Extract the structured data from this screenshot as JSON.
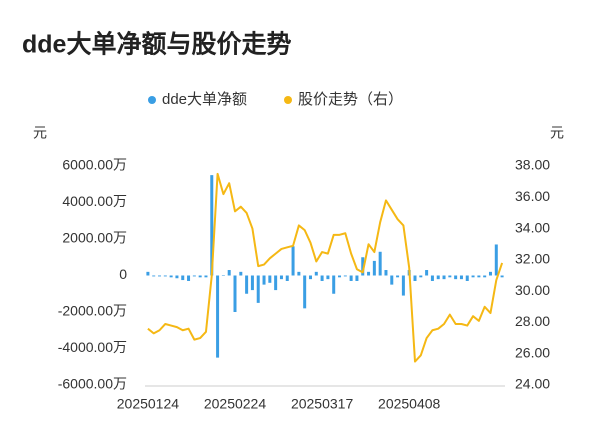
{
  "chart_data": {
    "type": "bar",
    "title": "dde大单净额与股价走势",
    "ylabel": "元",
    "y2label": "元",
    "categories": [
      "20250124",
      null,
      null,
      null,
      null,
      null,
      null,
      null,
      null,
      null,
      null,
      null,
      null,
      null,
      null,
      "20250224",
      null,
      null,
      null,
      null,
      null,
      null,
      null,
      null,
      null,
      null,
      null,
      null,
      null,
      null,
      "20250317",
      null,
      null,
      null,
      null,
      null,
      null,
      null,
      null,
      null,
      null,
      null,
      null,
      null,
      null,
      "20250408",
      null,
      null,
      null,
      null,
      null,
      null,
      null,
      null,
      null,
      null,
      null,
      null,
      null,
      null,
      null,
      null
    ],
    "series": [
      {
        "name": "dde大单净额",
        "type": "bar",
        "color": "#3a9ee4",
        "values": [
          200,
          -50,
          -50,
          -50,
          -100,
          -150,
          -250,
          -300,
          -50,
          -100,
          -100,
          5500,
          -4500,
          0,
          300,
          -2000,
          200,
          -1000,
          -800,
          -1500,
          -500,
          -400,
          -800,
          -200,
          -300,
          1600,
          200,
          -1800,
          -200,
          200,
          -300,
          -200,
          -1000,
          -100,
          -50,
          -300,
          -300,
          1000,
          200,
          800,
          1300,
          300,
          -500,
          -100,
          -1100,
          300,
          -300,
          -100,
          300,
          -300,
          -200,
          -200,
          -100,
          -200,
          -200,
          -300,
          -100,
          -100,
          -100,
          200,
          1700,
          -100
        ]
      },
      {
        "name": "股价走势（右）",
        "type": "line",
        "axis": "y2",
        "color": "#f5b814",
        "values": [
          27.6,
          27.3,
          27.5,
          27.9,
          27.8,
          27.7,
          27.5,
          27.6,
          26.9,
          27.0,
          27.4,
          31.0,
          37.5,
          36.2,
          36.9,
          35.1,
          35.4,
          35.0,
          34.0,
          31.6,
          31.7,
          32.1,
          32.4,
          32.7,
          32.8,
          32.9,
          34.2,
          33.9,
          33.1,
          31.9,
          32.5,
          32.4,
          33.6,
          33.6,
          33.7,
          32.4,
          31.4,
          31.2,
          33.0,
          32.5,
          34.4,
          35.8,
          35.2,
          34.6,
          34.2,
          31.5,
          25.5,
          25.9,
          27.0,
          27.5,
          27.6,
          27.9,
          28.5,
          27.9,
          27.9,
          27.8,
          28.4,
          28.1,
          29.0,
          28.6,
          30.7,
          31.8
        ]
      }
    ],
    "ylim": [
      -6000,
      6000
    ],
    "yticks": [
      {
        "value": 6000,
        "label": "6000.00万"
      },
      {
        "value": 4000,
        "label": "4000.00万"
      },
      {
        "value": 2000,
        "label": "2000.00万"
      },
      0,
      {
        "value": -2000,
        "label": "-2000.00万"
      },
      {
        "value": -4000,
        "label": "-4000.00万"
      },
      {
        "value": -6000,
        "label": "-6000.00万"
      }
    ],
    "y2lim": [
      24,
      38
    ],
    "y2ticks": [
      {
        "value": 38,
        "label": "38.00"
      },
      {
        "value": 36,
        "label": "36.00"
      },
      {
        "value": 34,
        "label": "34.00"
      },
      {
        "value": 32,
        "label": "32.00"
      },
      {
        "value": 30,
        "label": "30.00"
      },
      {
        "value": 28,
        "label": "28.00"
      },
      {
        "value": 26,
        "label": "26.00"
      },
      {
        "value": 24,
        "label": "24.00"
      }
    ],
    "grid": false
  }
}
